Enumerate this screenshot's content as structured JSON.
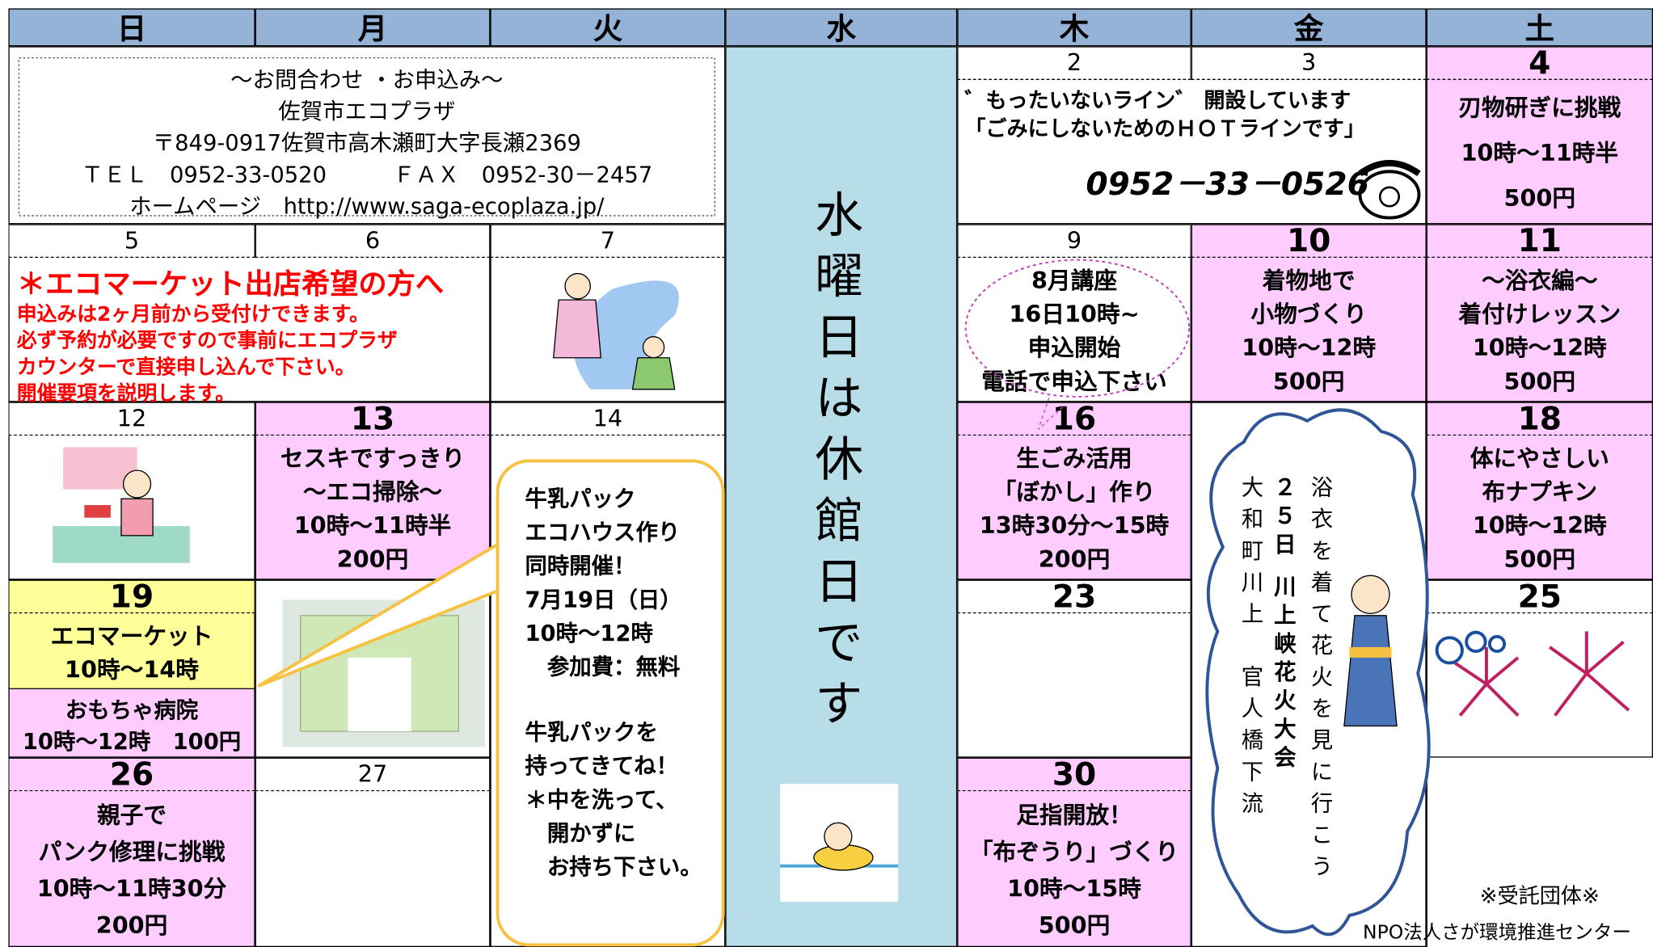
{
  "weekdays": [
    "日",
    "月",
    "火",
    "水",
    "木",
    "金",
    "土"
  ],
  "contact": [
    "～お問合わせ ・お申込み～",
    "佐賀市エコプラザ",
    "〒849-0917佐賀市高木瀬町大字長瀬2369",
    "ＴＥＬ　0952-33-0520　　　ＦＡＸ　0952-30－2457",
    "ホームページ　http://www.saga-ecoplaza.jp/"
  ],
  "closed_notice": "水曜日は休館日です",
  "hotline": {
    "lines": [
      "゛もったいないライン゛ 開設しています",
      "「ごみにしないためのＨＯＴラインです」"
    ],
    "phone": "0952－33－0526"
  },
  "notice": {
    "heading": "＊エコマーケット出店希望の方へ",
    "lines": [
      "申込みは2ヶ月前から受付けできます。",
      "必ず予約が必要ですので事前にエコプラザ",
      "カウンターで直接申し込んで下さい。",
      "開催要項を説明します。"
    ]
  },
  "cells": [
    {
      "day": 2
    },
    {
      "day": 3
    },
    {
      "day": 4,
      "lines": [
        "刃物研ぎに挑戦",
        "10時～11時半",
        "500円"
      ]
    },
    {
      "day": 5
    },
    {
      "day": 6
    },
    {
      "day": 7
    },
    {
      "day": 9,
      "lines": [
        "8月講座",
        "16日10時~",
        "申込開始",
        "電話で申込下さい"
      ]
    },
    {
      "day": 10,
      "lines": [
        "着物地で",
        "小物づくり",
        "10時～12時",
        "500円"
      ]
    },
    {
      "day": 11,
      "lines": [
        "～浴衣編～",
        "着付けレッスン",
        "10時～12時",
        "500円"
      ]
    },
    {
      "day": 12
    },
    {
      "day": 13,
      "lines": [
        "セスキですっきり",
        "～エコ掃除～",
        "10時～11時半",
        "200円"
      ]
    },
    {
      "day": 14
    },
    {
      "day": 16,
      "lines": [
        "生ごみ活用",
        "「ぼかし」作り",
        "13時30分～15時",
        "200円"
      ]
    },
    {
      "day": 18,
      "lines": [
        "体にやさしい",
        "布ナプキン",
        "10時～12時",
        "500円"
      ]
    },
    {
      "day": 19,
      "lines": [
        "エコマーケット",
        "10時～14時"
      ],
      "extra": [
        "おもちゃ病院",
        "10時～12時　100円"
      ]
    },
    {
      "day": 23
    },
    {
      "day": 25
    },
    {
      "day": 26,
      "lines": [
        "親子で",
        "パンク修理に挑戦",
        "10時～11時30分",
        "200円"
      ]
    },
    {
      "day": 27
    },
    {
      "day": 30,
      "lines": [
        "足指開放！",
        "「布ぞうり」づくり",
        "10時～15時",
        "500円"
      ]
    }
  ],
  "callout": {
    "event": [
      "牛乳パック",
      "エコハウス作り",
      "同時開催！",
      "7月19日（日）",
      "10時～12時",
      "　参加費：無料"
    ],
    "request": [
      "牛乳パックを",
      "持ってきてね！",
      "＊中を洗って、",
      "　開かずに",
      "　お持ち下さい。"
    ]
  },
  "festival": [
    "浴衣を着て花火を見に行こう",
    "２５日 川上峡花火大会",
    "大和町川上　官人橋下流"
  ],
  "footer": {
    "label": "※受託団体※",
    "org": "NPO法人さが環境推進センター"
  }
}
